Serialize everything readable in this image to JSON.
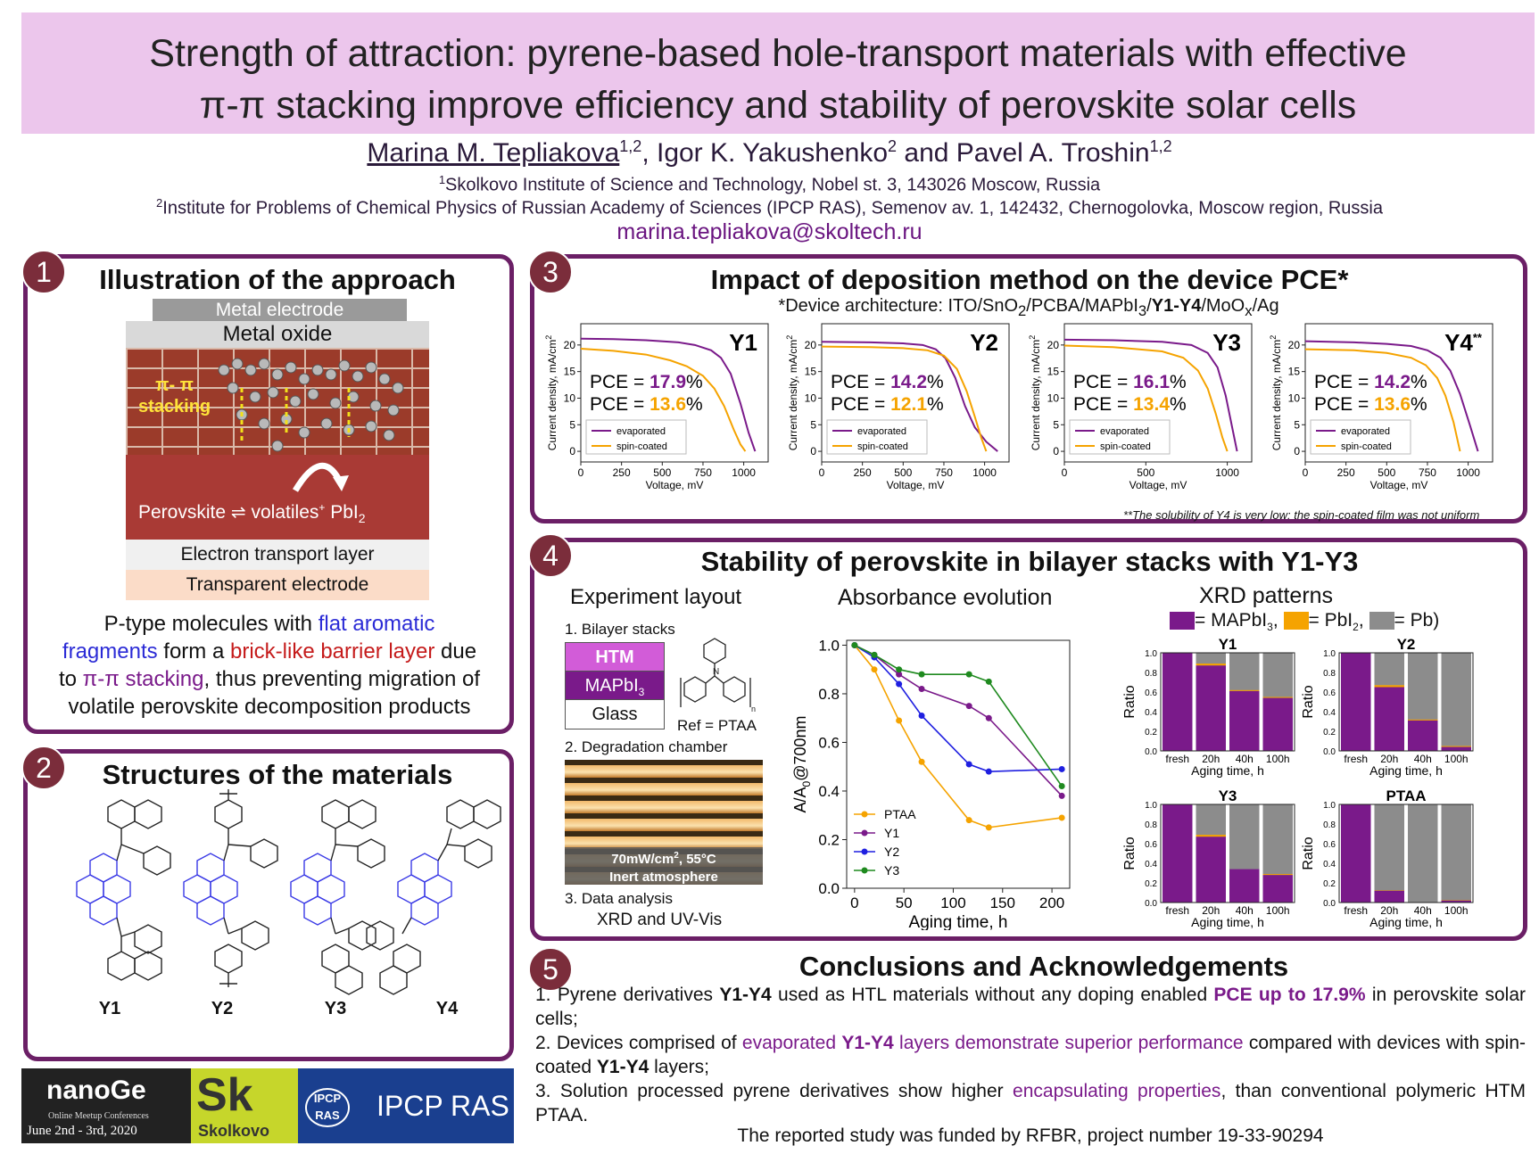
{
  "title": {
    "line1": "Strength of attraction: pyrene-based hole-transport materials with effective",
    "line2": "π-π stacking improve efficiency and stability of perovskite solar cells"
  },
  "authors": {
    "a1": "Marina M. Tepliakova",
    "a1_sup": "1,2",
    "sep1": ", Igor K. Yakushenko",
    "a2_sup": "2",
    "sep2": " and Pavel A. Troshin",
    "a3_sup": "1,2"
  },
  "affiliations": [
    {
      "sup": "1",
      "text": "Skolkovo Institute of Science and Technology, Nobel st. 3, 143026 Moscow, Russia"
    },
    {
      "sup": "2",
      "text": "Institute for Problems of Chemical Physics of Russian Academy of Sciences (IPCP RAS), Semenov av. 1, 142432, Chernogolovka, Moscow region, Russia"
    }
  ],
  "email": "marina.tepliakova@skoltech.ru",
  "colors": {
    "border": "#6b1f66",
    "title_band": "#ecc6ec",
    "evaporated": "#7a1a8a",
    "spin": "#f5a300",
    "badge": "#7b2d3b"
  },
  "panel1": {
    "num": "1",
    "title": "Illustration of the approach",
    "layers": {
      "metal_electrode": "Metal electrode",
      "metal_oxide": "Metal oxide",
      "stacking_1": "π- π",
      "stacking_2": "stacking",
      "perovskite": "Perovskite",
      "volatiles": "volatiles",
      "plus": "+",
      "pbi2": "PbI",
      "pbi2_sub": "2",
      "etl": "Electron transport layer",
      "te": "Transparent electrode"
    },
    "text": {
      "t1": "P-type molecules with ",
      "t2": "flat aromatic",
      "t3": "fragments",
      "t4": " form a ",
      "t5": "brick-like barrier layer",
      "t6": " due",
      "t7": "to ",
      "t8": "π-π stacking",
      "t9": ", thus preventing migration of",
      "t10": "volatile perovskite decomposition products"
    }
  },
  "panel2": {
    "num": "2",
    "title": "Structures of the materials",
    "labels": [
      "Y1",
      "Y2",
      "Y3",
      "Y4"
    ]
  },
  "panel3": {
    "num": "3",
    "title": "Impact of deposition method on the device PCE*",
    "arch": {
      "p1": "*Device architecture: ITO/SnO",
      "s1": "2",
      "p2": "/PCBA/MAPbI",
      "s2": "3",
      "p3": "/",
      "b": "Y1-Y4",
      "p4": "/MoO",
      "s3": "x",
      "p5": "/Ag"
    },
    "footnote": "**The solubility of Y4 is very low: the spin-coated film was not uniform",
    "pce_label": "PCE = ",
    "pct": "%",
    "legend": {
      "evap": "evaporated",
      "spin": "spin-coated"
    }
  },
  "panel4": {
    "num": "4",
    "title": "Stability of perovskite in bilayer stacks with Y1-Y3",
    "exp": {
      "head": "Experiment layout",
      "s1": "1. Bilayer stacks",
      "htm": "HTM",
      "mapbi": "MAPbI",
      "mapbi_sub": "3",
      "glass": "Glass",
      "ref": "Ref = PTAA",
      "n": "n",
      "s2": "2. Degradation chamber",
      "cond1": "70mW/cm",
      "cond1_sup": "2",
      "cond1_end": ", 55°C",
      "cond2": "Inert atmosphere",
      "s3": "3. Data analysis",
      "s3b": "XRD and UV-Vis"
    },
    "abs_head": "Absorbance evolution",
    "xrd_head": "XRD patterns",
    "xrd_legend": {
      "a": "= MAPbI",
      "a_sub": "3",
      "a_end": ",",
      "b": "= PbI",
      "b_sub": "2",
      "b_end": ",",
      "c": "= Pb)"
    }
  },
  "panel5": {
    "num": "5",
    "title": "Conclusions and Acknowledgements",
    "c1": {
      "a": "1. Pyrene derivatives ",
      "b": "Y1-Y4",
      "c": " used as HTL materials without any doping enabled ",
      "d": "PCE up to 17.9%",
      "e": " in perovskite solar cells;"
    },
    "c2": {
      "a": "2. Devices comprised of ",
      "b": "evaporated ",
      "c": "Y1-Y4",
      "d": " layers demonstrate superior performance",
      "e": " compared with devices with spin-coated ",
      "f": "Y1-Y4",
      "g": " layers;"
    },
    "c3": {
      "a": "3. Solution processed pyrene derivatives show higher ",
      "b": "encapsulating properties",
      "c": ", than conventional polymeric HTM PTAA."
    },
    "funding": "The reported study was funded by RFBR, project number 19-33-90294"
  },
  "logos": {
    "nanoge": "nanoGe",
    "nanoge_sub": "Online Meetup Conferences",
    "nanoge_date": "June 2nd - 3rd, 2020",
    "sk": "Sk",
    "skolkovo": "Skolkovo",
    "ipcp_small1": "IPCP",
    "ipcp_small2": "RAS",
    "ipcp": "IPCP RAS"
  },
  "chart_data": [
    {
      "type": "line",
      "name": "jv-Y1",
      "label": "Y1",
      "label_sup": "",
      "xlabel": "Voltage, mV",
      "ylabel": "Current density, mA/cm",
      "ylabel_sup": "2",
      "xlim": [
        0,
        1150
      ],
      "ylim": [
        -2,
        24
      ],
      "xticks": [
        0,
        250,
        500,
        750,
        1000
      ],
      "yticks": [
        0,
        5,
        10,
        15,
        20
      ],
      "pce": {
        "evap": "17.9",
        "spin": "13.6"
      },
      "series": [
        {
          "name": "evaporated",
          "color": "#7a1a8a",
          "x": [
            0,
            200,
            400,
            600,
            700,
            800,
            860,
            920,
            980,
            1030,
            1070
          ],
          "y": [
            21.2,
            21.1,
            20.9,
            20.5,
            20.0,
            19.0,
            17.6,
            14.6,
            9.0,
            3.5,
            0
          ]
        },
        {
          "name": "spin-coated",
          "color": "#f5a300",
          "x": [
            0,
            200,
            400,
            550,
            650,
            750,
            820,
            880,
            940,
            980,
            1010
          ],
          "y": [
            19.3,
            18.9,
            18.2,
            17.1,
            16.0,
            14.2,
            11.8,
            8.5,
            4.0,
            1.3,
            0
          ]
        }
      ]
    },
    {
      "type": "line",
      "name": "jv-Y2",
      "label": "Y2",
      "label_sup": "",
      "xlabel": "Voltage, mV",
      "ylabel": "Current density, mA/cm",
      "ylabel_sup": "2",
      "xlim": [
        0,
        1150
      ],
      "ylim": [
        -2,
        24
      ],
      "xticks": [
        0,
        250,
        500,
        750,
        1000
      ],
      "yticks": [
        0,
        5,
        10,
        15,
        20
      ],
      "pce": {
        "evap": "14.2",
        "spin": "12.1"
      },
      "series": [
        {
          "name": "evaporated",
          "color": "#7a1a8a",
          "x": [
            0,
            300,
            500,
            620,
            700,
            760,
            820,
            880,
            940,
            1010,
            1080
          ],
          "y": [
            20.6,
            20.5,
            20.3,
            20.0,
            19.2,
            17.5,
            13.8,
            8.5,
            4.5,
            1.8,
            0
          ]
        },
        {
          "name": "spin-coated",
          "color": "#f5a300",
          "x": [
            0,
            300,
            500,
            650,
            750,
            830,
            890,
            940,
            980,
            1010
          ],
          "y": [
            19.7,
            19.6,
            19.4,
            19.0,
            18.0,
            15.5,
            11.3,
            6.5,
            2.5,
            0
          ]
        }
      ]
    },
    {
      "type": "line",
      "name": "jv-Y3",
      "label": "Y3",
      "label_sup": "",
      "xlabel": "Voltage, mV",
      "ylabel": "Current density, mA/cm",
      "ylabel_sup": "2",
      "xlim": [
        0,
        1150
      ],
      "ylim": [
        -2,
        24
      ],
      "xticks": [
        0,
        500,
        1000
      ],
      "yticks": [
        0,
        5,
        10,
        15,
        20
      ],
      "pce": {
        "evap": "16.1",
        "spin": "13.4"
      },
      "series": [
        {
          "name": "evaporated",
          "color": "#7a1a8a",
          "x": [
            0,
            300,
            600,
            780,
            880,
            940,
            990,
            1030,
            1060
          ],
          "y": [
            21.0,
            20.9,
            20.6,
            20.0,
            18.5,
            15.8,
            10.5,
            4.5,
            0
          ]
        },
        {
          "name": "spin-coated",
          "color": "#f5a300",
          "x": [
            0,
            300,
            600,
            730,
            820,
            880,
            930,
            970,
            1000
          ],
          "y": [
            19.9,
            19.6,
            18.8,
            17.6,
            15.2,
            11.8,
            7.0,
            2.6,
            0
          ]
        }
      ]
    },
    {
      "type": "line",
      "name": "jv-Y4",
      "label": "Y4",
      "label_sup": "**",
      "xlabel": "Voltage, mV",
      "ylabel": "Current density, mA/cm",
      "ylabel_sup": "2",
      "xlim": [
        0,
        1150
      ],
      "ylim": [
        -2,
        24
      ],
      "xticks": [
        0,
        250,
        500,
        750,
        1000
      ],
      "yticks": [
        0,
        5,
        10,
        15,
        20
      ],
      "pce": {
        "evap": "14.2",
        "spin": "13.6"
      },
      "series": [
        {
          "name": "evaporated",
          "color": "#7a1a8a",
          "x": [
            0,
            300,
            500,
            650,
            750,
            830,
            890,
            950,
            1010,
            1060
          ],
          "y": [
            20.7,
            20.5,
            20.2,
            19.8,
            19.0,
            17.6,
            15.2,
            10.8,
            5.0,
            0
          ]
        },
        {
          "name": "spin-coated",
          "color": "#f5a300",
          "x": [
            0,
            300,
            500,
            650,
            740,
            810,
            860,
            910,
            950
          ],
          "y": [
            19.2,
            19.0,
            18.5,
            17.6,
            16.2,
            13.8,
            10.5,
            5.5,
            0
          ]
        }
      ]
    },
    {
      "type": "line",
      "name": "absorbance",
      "xlabel": "Aging time, h",
      "ylabel": "A/A",
      "ylabel_sub": "0",
      "ylabel_end": "@700nm",
      "xlim": [
        -8,
        218
      ],
      "ylim": [
        0.0,
        1.02
      ],
      "xticks": [
        0,
        50,
        100,
        150,
        200
      ],
      "yticks": [
        0.0,
        0.2,
        0.4,
        0.6,
        0.8,
        1.0
      ],
      "series": [
        {
          "name": "PTAA",
          "color": "#f5a300",
          "x": [
            0,
            20,
            45,
            68,
            116,
            136,
            210
          ],
          "y": [
            1.0,
            0.9,
            0.69,
            0.52,
            0.28,
            0.25,
            0.29
          ]
        },
        {
          "name": "Y1",
          "color": "#7a1a8a",
          "x": [
            0,
            20,
            45,
            68,
            116,
            136,
            210
          ],
          "y": [
            1.0,
            0.96,
            0.88,
            0.82,
            0.75,
            0.7,
            0.38
          ]
        },
        {
          "name": "Y2",
          "color": "#1f1fe0",
          "x": [
            0,
            20,
            45,
            68,
            116,
            136,
            210
          ],
          "y": [
            1.0,
            0.95,
            0.84,
            0.71,
            0.51,
            0.48,
            0.49
          ]
        },
        {
          "name": "Y3",
          "color": "#1f8a1f",
          "x": [
            0,
            20,
            45,
            68,
            116,
            136,
            210
          ],
          "y": [
            1.0,
            0.96,
            0.9,
            0.88,
            0.88,
            0.85,
            0.42
          ]
        }
      ]
    },
    {
      "type": "bar",
      "name": "xrd",
      "stacked": true,
      "categories": [
        "fresh",
        "20h",
        "40h",
        "100h"
      ],
      "xlabel": "Aging time, h",
      "ylabel": "Ratio",
      "ylim": [
        0,
        1
      ],
      "yticks": [
        0.0,
        0.2,
        0.4,
        0.6,
        0.8,
        1.0
      ],
      "colors": {
        "MAPbI3": "#7a1a8a",
        "PbI2": "#f5a300",
        "Pb": "#8c8c8c"
      },
      "panels": [
        {
          "title": "Y1",
          "MAPbI3": [
            1.0,
            0.87,
            0.61,
            0.54
          ],
          "PbI2": [
            0.0,
            0.02,
            0.01,
            0.01
          ]
        },
        {
          "title": "Y2",
          "MAPbI3": [
            1.0,
            0.65,
            0.31,
            0.04
          ],
          "PbI2": [
            0.0,
            0.02,
            0.01,
            0.01
          ]
        },
        {
          "title": "Y3",
          "MAPbI3": [
            1.0,
            0.67,
            0.34,
            0.28
          ],
          "PbI2": [
            0.0,
            0.02,
            0.0,
            0.01
          ]
        },
        {
          "title": "PTAA",
          "MAPbI3": [
            1.0,
            0.12,
            0.0,
            0.02
          ],
          "PbI2": [
            0.0,
            0.005,
            0.0,
            0.005
          ]
        }
      ]
    }
  ]
}
